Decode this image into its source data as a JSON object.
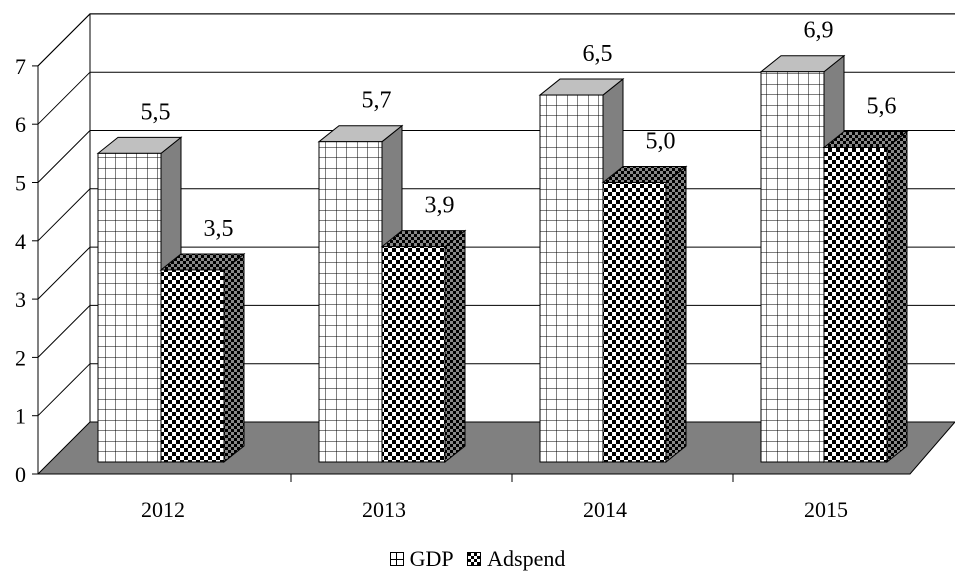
{
  "chart_data": {
    "type": "bar",
    "categories": [
      "2012",
      "2013",
      "2014",
      "2015"
    ],
    "series": [
      {
        "name": "GDP",
        "values": [
          5.5,
          5.7,
          6.5,
          6.9
        ],
        "labels": [
          "5,5",
          "5,7",
          "6,5",
          "6,9"
        ],
        "pattern": "grid"
      },
      {
        "name": "Adspend",
        "values": [
          3.5,
          3.9,
          5.0,
          5.6
        ],
        "labels": [
          "3,5",
          "3,9",
          "5,0",
          "5,6"
        ],
        "pattern": "checker"
      }
    ],
    "y_ticks": [
      "0",
      "1",
      "2",
      "3",
      "4",
      "5",
      "6",
      "7"
    ],
    "ylim": [
      0,
      7
    ],
    "grid": true,
    "legend_position": "bottom",
    "colors": {
      "floor": "#808080",
      "top_face": "#c0c0c0",
      "side_face": "#808080",
      "grid": "#000000"
    }
  },
  "legend": {
    "gdp": "GDP",
    "adspend": "Adspend"
  }
}
